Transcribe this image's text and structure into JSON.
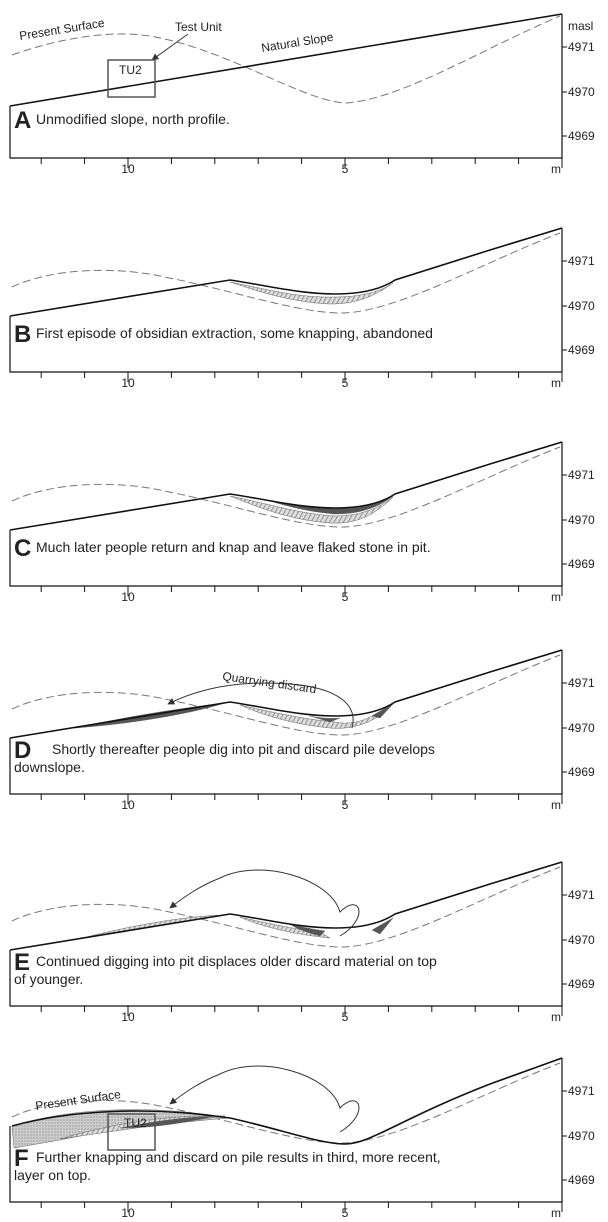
{
  "units": "masl",
  "distance_unit": "m",
  "elevations": [
    "4971",
    "4970",
    "4969"
  ],
  "distances": [
    "10",
    "5"
  ],
  "annotations": {
    "test_unit": "Test Unit",
    "present_surface": "Present Surface",
    "natural_slope": "Natural Slope",
    "tu2": "TU2",
    "quarrying_discard": "Quarrying discard"
  },
  "panels": [
    {
      "letter": "A",
      "caption": [
        "Unmodified slope, north profile."
      ]
    },
    {
      "letter": "B",
      "caption": [
        "First episode of obsidian extraction, some knapping, abandoned"
      ]
    },
    {
      "letter": "C",
      "caption": [
        "Much later people return and knap and leave flaked stone in pit."
      ]
    },
    {
      "letter": "D",
      "caption": [
        "Shortly thereafter people dig into pit and discard pile develops",
        "downslope."
      ]
    },
    {
      "letter": "E",
      "caption": [
        "Continued digging into pit displaces older discard material on top",
        "of younger."
      ]
    },
    {
      "letter": "F",
      "caption": [
        "Further knapping and discard on pile results in third, more recent,",
        "layer on top."
      ]
    }
  ]
}
